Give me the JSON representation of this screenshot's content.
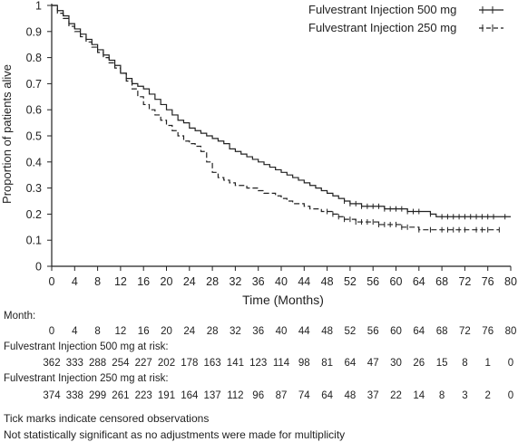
{
  "chart_data": {
    "type": "line",
    "title": "",
    "xlabel": "Time (Months)",
    "ylabel": "Proportion of patients alive",
    "xlim": [
      0,
      80
    ],
    "ylim": [
      0,
      1
    ],
    "x_ticks": [
      0,
      4,
      8,
      12,
      16,
      20,
      24,
      28,
      32,
      36,
      40,
      44,
      48,
      52,
      56,
      60,
      64,
      68,
      72,
      76,
      80
    ],
    "y_ticks": [
      0,
      0.1,
      0.2,
      0.3,
      0.4,
      0.5,
      0.6,
      0.7,
      0.8,
      0.9,
      1
    ],
    "y_tick_labels": [
      "0",
      "0.1",
      "0.2",
      "0.3",
      "0.4",
      "0.5",
      "0.6",
      "0.7",
      "0.8",
      "0.9",
      "1"
    ],
    "legend_position": "top-right",
    "series": [
      {
        "name": "Fulvestrant Injection 500 mg",
        "style": "solid",
        "x": [
          0,
          1,
          2,
          3,
          4,
          5,
          6,
          7,
          8,
          9,
          10,
          11,
          12,
          13,
          14,
          15,
          16,
          17,
          18,
          19,
          20,
          21,
          22,
          23,
          24,
          25,
          26,
          27,
          28,
          29,
          30,
          31,
          32,
          33,
          34,
          35,
          36,
          37,
          38,
          39,
          40,
          41,
          42,
          43,
          44,
          45,
          46,
          47,
          48,
          49,
          50,
          51,
          52,
          53,
          54,
          55,
          56,
          57,
          58,
          59,
          60,
          61,
          62,
          63,
          64,
          65,
          66,
          67,
          68,
          69,
          70,
          71,
          72,
          73,
          74,
          75,
          76,
          77,
          78,
          79,
          80
        ],
        "y": [
          1.0,
          0.98,
          0.96,
          0.93,
          0.91,
          0.89,
          0.87,
          0.85,
          0.83,
          0.81,
          0.79,
          0.77,
          0.74,
          0.72,
          0.7,
          0.69,
          0.68,
          0.66,
          0.64,
          0.62,
          0.6,
          0.58,
          0.56,
          0.55,
          0.53,
          0.52,
          0.51,
          0.5,
          0.49,
          0.48,
          0.47,
          0.45,
          0.44,
          0.43,
          0.42,
          0.41,
          0.4,
          0.39,
          0.38,
          0.37,
          0.36,
          0.35,
          0.34,
          0.33,
          0.32,
          0.31,
          0.3,
          0.29,
          0.28,
          0.27,
          0.26,
          0.25,
          0.24,
          0.24,
          0.23,
          0.23,
          0.23,
          0.23,
          0.22,
          0.22,
          0.22,
          0.22,
          0.21,
          0.21,
          0.21,
          0.21,
          0.2,
          0.19,
          0.19,
          0.19,
          0.19,
          0.19,
          0.19,
          0.19,
          0.19,
          0.19,
          0.19,
          0.19,
          0.19,
          0.19,
          0.19
        ],
        "censored": [
          51,
          52,
          53,
          54,
          55,
          56,
          57,
          58,
          59,
          60,
          61,
          62,
          63,
          64,
          66,
          68,
          69,
          70,
          71,
          72,
          73,
          74,
          75,
          76,
          77,
          79
        ]
      },
      {
        "name": "Fulvestrant Injection 250 mg",
        "style": "dashed",
        "x": [
          0,
          1,
          2,
          3,
          4,
          5,
          6,
          7,
          8,
          9,
          10,
          11,
          12,
          13,
          14,
          15,
          16,
          17,
          18,
          19,
          20,
          21,
          22,
          23,
          24,
          25,
          26,
          27,
          28,
          29,
          30,
          31,
          32,
          33,
          34,
          35,
          36,
          37,
          38,
          39,
          40,
          41,
          42,
          43,
          44,
          45,
          46,
          47,
          48,
          49,
          50,
          51,
          52,
          53,
          54,
          55,
          56,
          57,
          58,
          59,
          60,
          61,
          62,
          63,
          64,
          65,
          66,
          67,
          68,
          69,
          70,
          71,
          72,
          73,
          74,
          75,
          76,
          77,
          78
        ],
        "y": [
          1.0,
          0.97,
          0.95,
          0.92,
          0.9,
          0.88,
          0.86,
          0.84,
          0.82,
          0.8,
          0.78,
          0.76,
          0.74,
          0.71,
          0.68,
          0.65,
          0.62,
          0.6,
          0.58,
          0.56,
          0.54,
          0.52,
          0.5,
          0.48,
          0.47,
          0.46,
          0.44,
          0.4,
          0.36,
          0.34,
          0.33,
          0.32,
          0.31,
          0.31,
          0.3,
          0.3,
          0.29,
          0.28,
          0.28,
          0.27,
          0.26,
          0.25,
          0.24,
          0.24,
          0.23,
          0.22,
          0.22,
          0.21,
          0.21,
          0.2,
          0.19,
          0.18,
          0.18,
          0.17,
          0.17,
          0.17,
          0.17,
          0.16,
          0.16,
          0.16,
          0.16,
          0.15,
          0.15,
          0.15,
          0.14,
          0.14,
          0.14,
          0.14,
          0.14,
          0.14,
          0.14,
          0.14,
          0.14,
          0.14,
          0.14,
          0.14,
          0.14,
          0.14,
          0.14
        ],
        "censored": [
          48,
          49,
          50,
          51,
          52,
          53,
          54,
          55,
          56,
          57,
          58,
          59,
          60,
          61,
          62,
          64,
          66,
          68,
          69,
          70,
          71,
          72,
          74,
          75,
          76,
          78
        ]
      }
    ]
  },
  "risk_table": {
    "month_label": "Month:",
    "months": [
      "0",
      "4",
      "8",
      "12",
      "16",
      "20",
      "24",
      "28",
      "32",
      "36",
      "40",
      "44",
      "48",
      "52",
      "56",
      "60",
      "64",
      "68",
      "72",
      "76",
      "80"
    ],
    "rows": [
      {
        "label": "Fulvestrant Injection 500 mg at risk:",
        "values": [
          "362",
          "333",
          "288",
          "254",
          "227",
          "202",
          "178",
          "163",
          "141",
          "123",
          "114",
          "98",
          "81",
          "64",
          "47",
          "30",
          "26",
          "15",
          "8",
          "1",
          "0"
        ]
      },
      {
        "label": "Fulvestrant Injection 250 mg at risk:",
        "values": [
          "374",
          "338",
          "299",
          "261",
          "223",
          "191",
          "164",
          "137",
          "112",
          "96",
          "87",
          "74",
          "64",
          "48",
          "37",
          "22",
          "14",
          "8",
          "3",
          "2",
          "0"
        ]
      }
    ]
  },
  "notes": {
    "line1": "Tick marks indicate censored observations",
    "line2": "Not statistically significant as no adjustments were made for multiplicity"
  },
  "colors": {
    "line": "#222222",
    "axis": "#222222"
  }
}
